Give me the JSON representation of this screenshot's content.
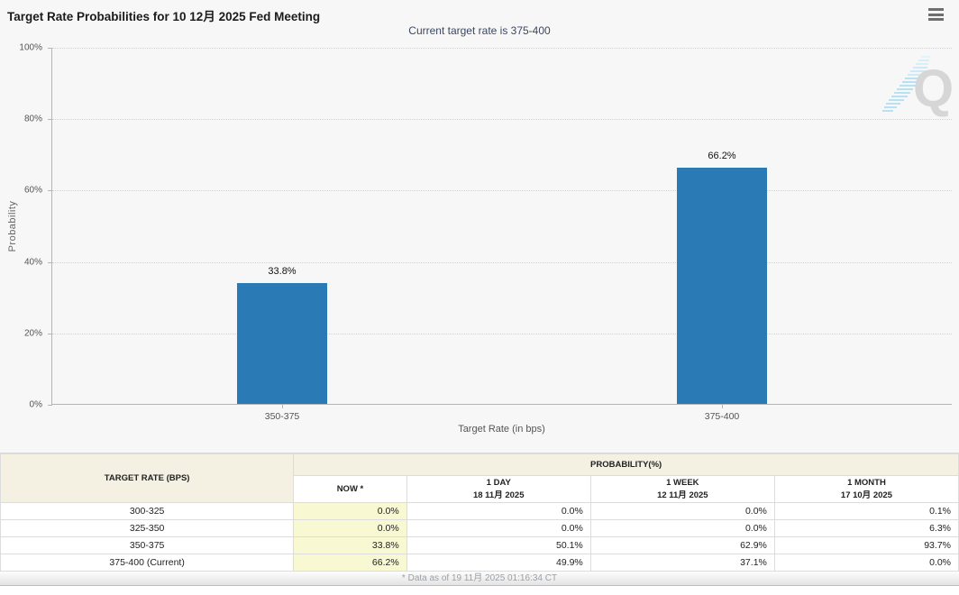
{
  "header": {
    "menu_icon": "hamburger-icon"
  },
  "chart_data": {
    "type": "bar",
    "title": "Target Rate Probabilities for 10 12月 2025 Fed Meeting",
    "subtitle": "Current target rate is 375-400",
    "categories": [
      "350-375",
      "375-400"
    ],
    "values": [
      33.8,
      66.2
    ],
    "value_labels": [
      "33.8%",
      "66.2%"
    ],
    "xlabel": "Target Rate (in bps)",
    "ylabel": "Probability",
    "ylim": [
      0,
      100
    ],
    "yticks": [
      0,
      20,
      40,
      60,
      80,
      100
    ],
    "ytick_labels": [
      "0%",
      "20%",
      "40%",
      "60%",
      "80%",
      "100%"
    ],
    "bar_color": "#2a7ab5",
    "grid": "horizontal-dotted",
    "legend": "none",
    "watermark_letter": "Q"
  },
  "table": {
    "col1_header": "TARGET RATE (BPS)",
    "group_header": "PROBABILITY(%)",
    "columns": [
      {
        "label": "NOW *",
        "sub": ""
      },
      {
        "label": "1 DAY",
        "sub": "18 11月 2025"
      },
      {
        "label": "1 WEEK",
        "sub": "12 11月 2025"
      },
      {
        "label": "1 MONTH",
        "sub": "17 10月 2025"
      }
    ],
    "rows": [
      {
        "rate": "300-325",
        "values": [
          "0.0%",
          "0.0%",
          "0.0%",
          "0.1%"
        ]
      },
      {
        "rate": "325-350",
        "values": [
          "0.0%",
          "0.0%",
          "0.0%",
          "6.3%"
        ]
      },
      {
        "rate": "350-375",
        "values": [
          "33.8%",
          "50.1%",
          "62.9%",
          "93.7%"
        ]
      },
      {
        "rate": "375-400 (Current)",
        "values": [
          "66.2%",
          "49.9%",
          "37.1%",
          "0.0%"
        ]
      }
    ],
    "footnote": "* Data as of 19 11月 2025 01:16:34 CT"
  },
  "colors": {
    "bar": "#2a7ab5",
    "panel_bg": "#f7f7f7",
    "now_column_bg": "#f8f8d3",
    "header_bg": "#f4f1e2",
    "subtitle_text": "#3b4760",
    "watermark_stripe": "#b8e2f2",
    "watermark_letter": "#d6d6d6"
  }
}
